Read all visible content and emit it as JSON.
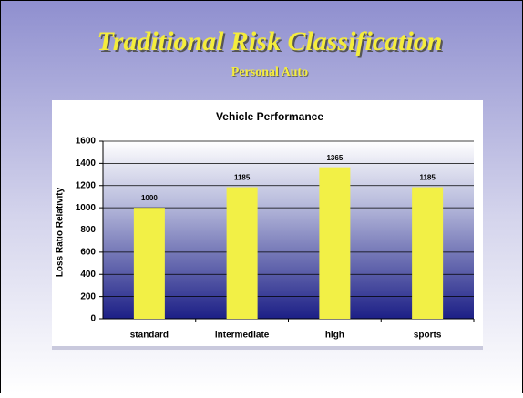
{
  "slide": {
    "title": "Traditional Risk Classification",
    "subtitle": "Personal Auto"
  },
  "chart_data": {
    "type": "bar",
    "title": "Vehicle Performance",
    "y_label": "Loss Ratio Relativity",
    "categories": [
      "standard",
      "intermediate",
      "high",
      "sports"
    ],
    "values": [
      1000,
      1185,
      1365,
      1185
    ],
    "color": "#f2f046",
    "ylim": [
      0,
      1600
    ],
    "yticks": [
      0,
      200,
      400,
      600,
      800,
      1000,
      1200,
      1400,
      1600
    ],
    "grid": true
  }
}
